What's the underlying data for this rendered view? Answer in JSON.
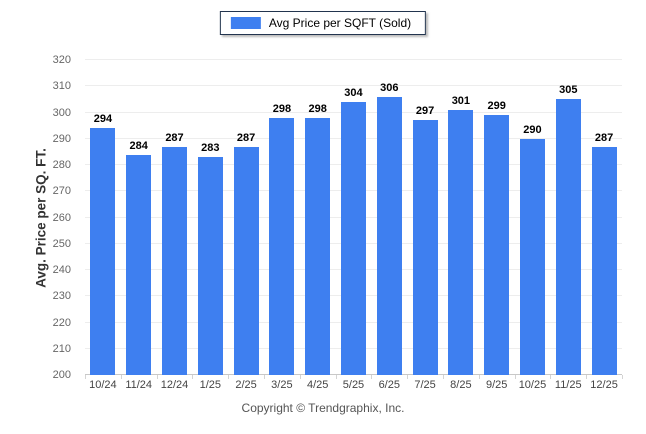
{
  "legend": {
    "label": "Avg Price per SQFT (Sold)"
  },
  "footer": {
    "copyright": "Copyright © Trendgraphix, Inc."
  },
  "colors": {
    "bar": "#3e7ff0",
    "legend_border": "#22344e",
    "gridline": "#ededed",
    "baseline": "#c8c8c8"
  },
  "chart_data": {
    "type": "bar",
    "title": "Avg Price per SQFT (Sold)",
    "categories": [
      "10/24",
      "11/24",
      "12/24",
      "1/25",
      "2/25",
      "3/25",
      "4/25",
      "5/25",
      "6/25",
      "7/25",
      "8/25",
      "9/25",
      "10/25",
      "11/25",
      "12/25"
    ],
    "values": [
      294,
      284,
      287,
      283,
      287,
      298,
      298,
      304,
      306,
      297,
      301,
      299,
      290,
      305,
      287
    ],
    "xlabel": "",
    "ylabel": "Avg. Price per SQ. FT.",
    "ylim": [
      200,
      320
    ],
    "ytick_step": 10,
    "grid": true,
    "legend_position": "top-center",
    "bar_color": "#3e7ff0"
  }
}
